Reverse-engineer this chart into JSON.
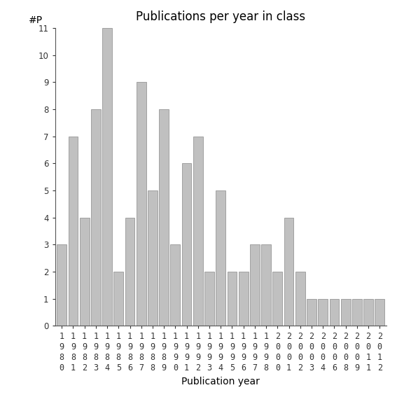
{
  "years": [
    1980,
    1981,
    1982,
    1983,
    1984,
    1985,
    1986,
    1987,
    1988,
    1989,
    1990,
    1991,
    1992,
    1993,
    1994,
    1995,
    1996,
    1997,
    1998,
    2000,
    2001,
    2002,
    2003,
    2004,
    2006,
    2008,
    2009,
    2011,
    2012
  ],
  "values": [
    3,
    7,
    4,
    8,
    11,
    2,
    4,
    9,
    5,
    8,
    3,
    6,
    7,
    2,
    5,
    2,
    2,
    3,
    3,
    2,
    4,
    2,
    1,
    1,
    1,
    1,
    1,
    1,
    1
  ],
  "bar_color": "#c0c0c0",
  "bar_edgecolor": "#888888",
  "title": "Publications per year in class",
  "xlabel": "Publication year",
  "ylabel": "#P",
  "ylim": [
    0,
    11
  ],
  "yticks": [
    0,
    1,
    2,
    3,
    4,
    5,
    6,
    7,
    8,
    9,
    10,
    11
  ],
  "background_color": "#ffffff",
  "title_fontsize": 12,
  "label_fontsize": 10,
  "tick_fontsize": 8.5
}
